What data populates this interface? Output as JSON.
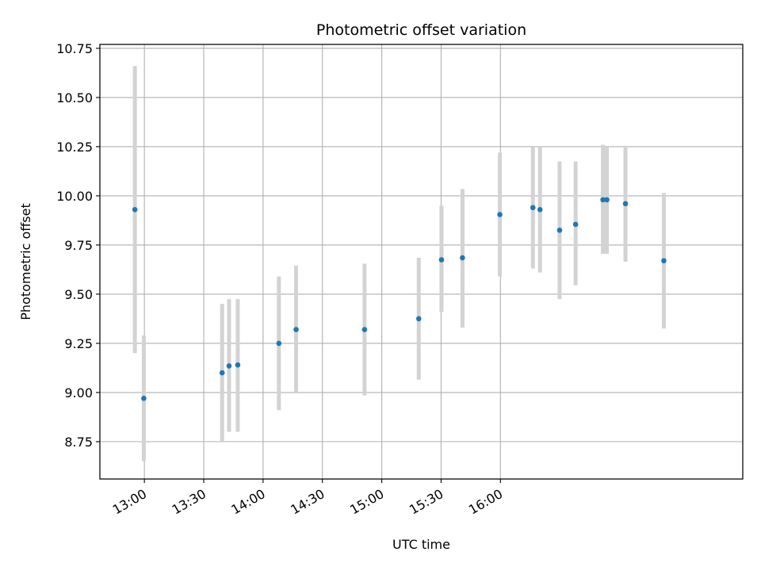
{
  "chart_data": {
    "type": "scatter",
    "title": "Photometric offset variation",
    "xlabel": "UTC time",
    "ylabel": "Photometric offset",
    "x_unit": "minutes since 00:00 UTC",
    "xlim": [
      757.5,
      1082.5
    ],
    "ylim": [
      8.56,
      10.77
    ],
    "grid": true,
    "x_ticks": [
      {
        "value": 780,
        "label": "13:00"
      },
      {
        "value": 810,
        "label": "13:30"
      },
      {
        "value": 840,
        "label": "14:00"
      },
      {
        "value": 870,
        "label": "14:30"
      },
      {
        "value": 900,
        "label": "15:00"
      },
      {
        "value": 930,
        "label": "15:30"
      },
      {
        "value": 960,
        "label": "16:00"
      }
    ],
    "y_ticks": [
      {
        "value": 8.75,
        "label": "8.75"
      },
      {
        "value": 9.0,
        "label": "9.00"
      },
      {
        "value": 9.25,
        "label": "9.25"
      },
      {
        "value": 9.5,
        "label": "9.50"
      },
      {
        "value": 9.75,
        "label": "9.75"
      },
      {
        "value": 10.0,
        "label": "10.00"
      },
      {
        "value": 10.25,
        "label": "10.25"
      },
      {
        "value": 10.5,
        "label": "10.50"
      },
      {
        "value": 10.75,
        "label": "10.75"
      }
    ],
    "point_color": "#1f77b4",
    "errorbar_color": "#d3d3d3",
    "points": [
      {
        "x": 775.2,
        "y": 9.93,
        "low": 9.2,
        "high": 10.66
      },
      {
        "x": 779.7,
        "y": 8.97,
        "low": 8.65,
        "high": 9.29
      },
      {
        "x": 819.3,
        "y": 9.1,
        "low": 8.75,
        "high": 9.45
      },
      {
        "x": 822.8,
        "y": 9.135,
        "low": 8.8,
        "high": 9.475
      },
      {
        "x": 827.2,
        "y": 9.14,
        "low": 8.8,
        "high": 9.475
      },
      {
        "x": 848.0,
        "y": 9.25,
        "low": 8.91,
        "high": 9.59
      },
      {
        "x": 856.7,
        "y": 9.32,
        "low": 9.0,
        "high": 9.645
      },
      {
        "x": 891.3,
        "y": 9.32,
        "low": 8.985,
        "high": 9.655
      },
      {
        "x": 918.7,
        "y": 9.375,
        "low": 9.065,
        "high": 9.685
      },
      {
        "x": 930.2,
        "y": 9.675,
        "low": 9.41,
        "high": 9.95
      },
      {
        "x": 940.8,
        "y": 9.685,
        "low": 9.33,
        "high": 10.035
      },
      {
        "x": 959.7,
        "y": 9.905,
        "low": 9.59,
        "high": 10.22
      },
      {
        "x": 976.4,
        "y": 9.94,
        "low": 9.63,
        "high": 10.25
      },
      {
        "x": 980.0,
        "y": 9.93,
        "low": 9.61,
        "high": 10.25
      },
      {
        "x": 989.9,
        "y": 9.825,
        "low": 9.475,
        "high": 10.175
      },
      {
        "x": 998.0,
        "y": 9.855,
        "low": 9.545,
        "high": 10.175
      },
      {
        "x": 1011.8,
        "y": 9.98,
        "low": 9.705,
        "high": 10.26
      },
      {
        "x": 1013.8,
        "y": 9.98,
        "low": 9.705,
        "high": 10.25
      },
      {
        "x": 1023.2,
        "y": 9.96,
        "low": 9.665,
        "high": 10.255
      },
      {
        "x": 1042.6,
        "y": 9.67,
        "low": 9.325,
        "high": 10.015
      }
    ]
  }
}
